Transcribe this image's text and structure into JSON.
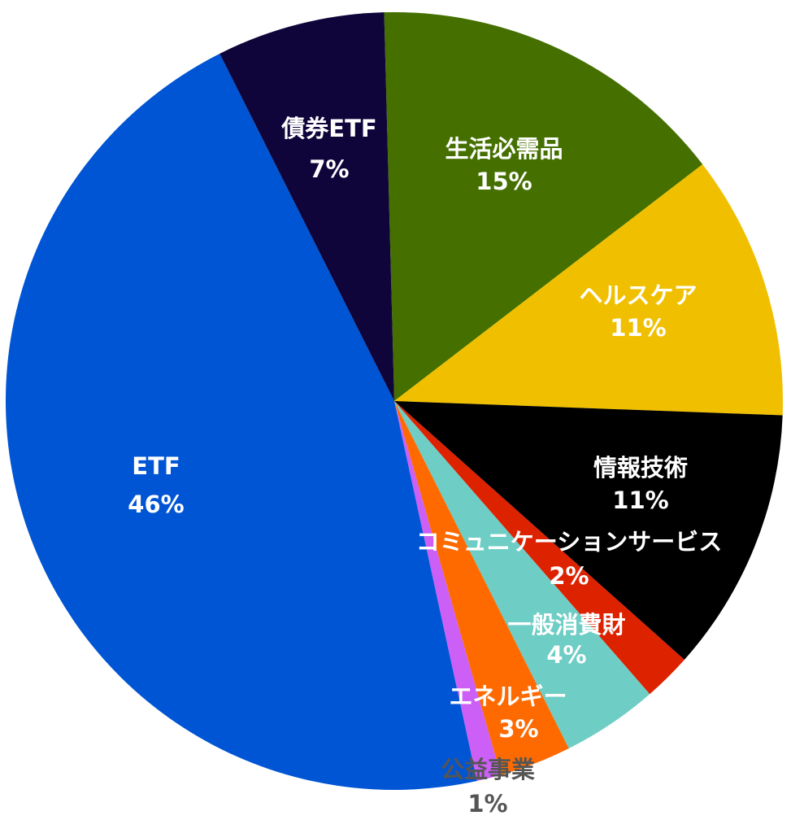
{
  "chart_data": {
    "type": "pie",
    "categories": [
      "生活必需品",
      "ヘルスケア",
      "情報技術",
      "コミュニケーションサービス",
      "一般消費財",
      "エネルギー",
      "公益事業",
      "ETF",
      "債券ETF"
    ],
    "values": [
      15,
      11,
      11,
      2,
      4,
      3,
      1,
      46,
      7
    ],
    "value_labels": [
      "15%",
      "11%",
      "11%",
      "2%",
      "4%",
      "3%",
      "1%",
      "46%",
      "7%"
    ],
    "colors": [
      "#457000",
      "#f0c000",
      "#000000",
      "#dd2200",
      "#6ecdc4",
      "#ff6a00",
      "#cc5ff5",
      "#0055d4",
      "#10053a"
    ]
  }
}
